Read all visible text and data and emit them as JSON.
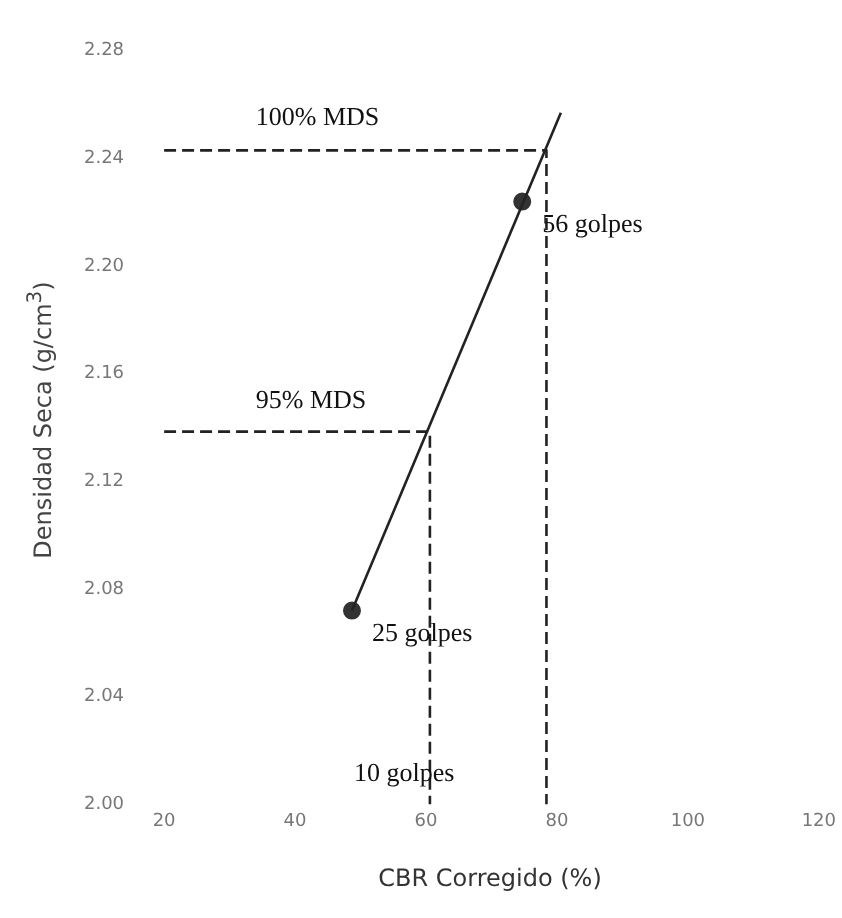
{
  "chart_data": {
    "type": "scatter",
    "xlabel": "CBR Corregido (%)",
    "ylabel": "Densidad Seca (g/cm$^{3}$)",
    "xlim": [
      20,
      120
    ],
    "xticks": [
      20,
      40,
      60,
      80,
      100,
      120
    ],
    "ylim": [
      2.0,
      2.28
    ],
    "yticks": [
      {
        "value": 2.0,
        "label": "2.00"
      },
      {
        "value": 2.04,
        "label": "2.04"
      },
      {
        "value": 2.08,
        "label": "2.08"
      },
      {
        "value": 2.12,
        "label": "2.12"
      },
      {
        "value": 2.16,
        "label": "2.16"
      },
      {
        "value": 2.2,
        "label": "2.20"
      },
      {
        "value": 2.24,
        "label": "2.24"
      },
      {
        "value": 2.28,
        "label": "2.28"
      }
    ],
    "grid": false,
    "legend": false,
    "series": [
      {
        "type": "line",
        "color": "#222222",
        "x": [
          48.7,
          80.6
        ],
        "values": [
          2.072,
          2.257
        ],
        "marker": "none",
        "line_style": "solid"
      },
      {
        "type": "line",
        "color": "#222222",
        "x": [
          20,
          78.4,
          78.4
        ],
        "values": [
          2.243,
          2.243,
          2.0
        ],
        "marker": "none",
        "line_style": "dashed"
      },
      {
        "type": "line",
        "color": "#222222",
        "x": [
          20,
          60.6,
          60.6
        ],
        "values": [
          2.1385,
          2.1385,
          2.0
        ],
        "marker": "none",
        "line_style": "dashed"
      },
      {
        "type": "scatter",
        "color": "#333333",
        "x": [
          48.7,
          74.7
        ],
        "values": [
          2.072,
          2.224
        ],
        "marker": "circle"
      }
    ],
    "annotations": [
      "100% MDS",
      "95% MDS",
      {
        "text": "56 golpes",
        "x": 74.7,
        "y": 2.224
      },
      {
        "text": "25 golpes",
        "x": 48.7,
        "y": 2.072
      },
      "10 golpes"
    ]
  }
}
